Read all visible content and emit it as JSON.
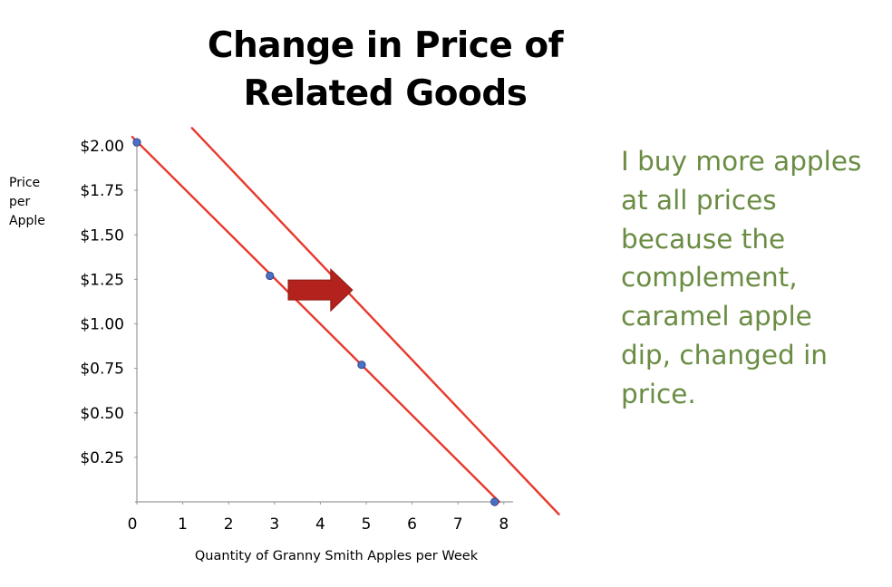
{
  "title": {
    "line1": "Change in Price of",
    "line2": "Related Goods"
  },
  "annotation": {
    "lines": [
      "I buy more apples",
      "at all prices",
      "because the",
      "complement,",
      "caramel apple",
      "dip, changed in",
      "price."
    ],
    "color": "#6a8c43"
  },
  "chart_data": {
    "type": "line",
    "xlabel": "Quantity of Granny Smith Apples per Week",
    "ylabel_lines": [
      "Price",
      "per",
      "Apple"
    ],
    "x_ticks": [
      "0",
      "1",
      "2",
      "3",
      "4",
      "5",
      "6",
      "7",
      "8"
    ],
    "y_ticks": [
      "$0.25",
      "$0.50",
      "$0.75",
      "$1.00",
      "$1.25",
      "$1.50",
      "$1.75",
      "$2.00"
    ],
    "xlim": [
      0,
      8
    ],
    "ylim": [
      0,
      2.0
    ],
    "grid": false,
    "legend": "none",
    "series": [
      {
        "points": [
          [
            -0.1,
            2.05
          ],
          [
            7.9,
            0.0
          ]
        ],
        "color": "#e8382b",
        "markers": [
          [
            0,
            2.02
          ],
          [
            2.9,
            1.27
          ],
          [
            4.9,
            0.77
          ],
          [
            7.8,
            0.0
          ]
        ],
        "marker_color": "#4a6fc4"
      },
      {
        "points": [
          [
            1.2,
            2.1
          ],
          [
            9.2,
            -0.07
          ]
        ],
        "color": "#e8382b"
      }
    ],
    "shift_arrow": {
      "direction": "right",
      "color": "#b3221c",
      "x_from": 3.3,
      "x_to": 4.7,
      "y": 1.19
    }
  }
}
